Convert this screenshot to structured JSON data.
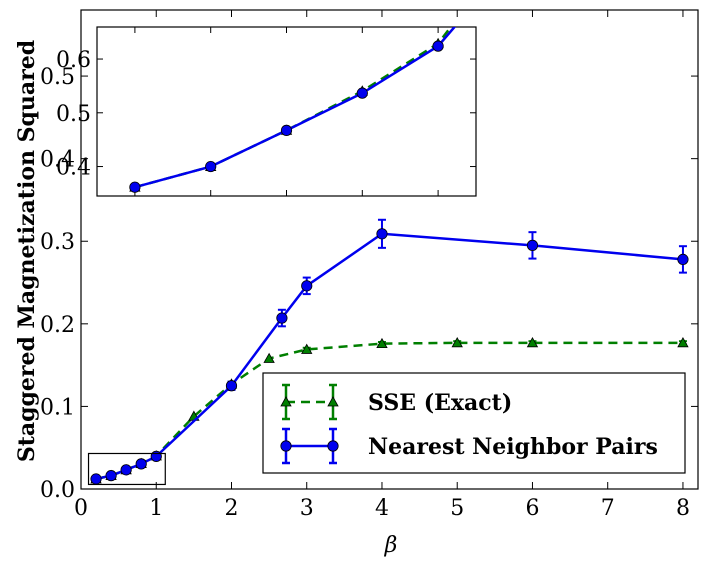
{
  "chart_data": [
    {
      "type": "line",
      "xlabel": "β",
      "ylabel": "Staggered Magnetization Squared",
      "xlim": [
        0,
        8.2
      ],
      "ylim": [
        0,
        0.58
      ],
      "x_ticks": [
        0,
        1,
        2,
        3,
        4,
        5,
        6,
        7,
        8
      ],
      "y_ticks": [
        0.0,
        0.1,
        0.2,
        0.3,
        0.4,
        0.5
      ],
      "x_tick_labels": [
        "0",
        "1",
        "2",
        "3",
        "4",
        "5",
        "6",
        "7",
        "8"
      ],
      "y_tick_labels": [
        "0.0",
        "0.1",
        "0.2",
        "0.3",
        "0.4",
        "0.5"
      ],
      "legend_position": "lower-right",
      "grid": false,
      "series": [
        {
          "name": "SSE (Exact)",
          "color": "#007f00",
          "linestyle": "dashed",
          "marker": "triangle",
          "x": [
            0.2,
            0.4,
            0.6,
            0.8,
            1.0,
            1.5,
            2.0,
            2.5,
            3.0,
            4.0,
            5.0,
            6.0,
            8.0
          ],
          "y": [
            0.0122,
            0.0162,
            0.0232,
            0.0308,
            0.04,
            0.088,
            0.127,
            0.158,
            0.169,
            0.176,
            0.177,
            0.177,
            0.177
          ],
          "yerr": [
            0,
            0,
            0,
            0,
            0,
            0,
            0,
            0,
            0.002,
            0.002,
            0.002,
            0.002,
            0.002
          ]
        },
        {
          "name": "Nearest Neighbor Pairs",
          "color": "#0000ee",
          "linestyle": "solid",
          "marker": "circle",
          "x": [
            0.2,
            0.4,
            0.6,
            0.8,
            1.0,
            2.0,
            2.67,
            3.0,
            4.0,
            6.0,
            8.0
          ],
          "y": [
            0.0122,
            0.0162,
            0.0232,
            0.0304,
            0.0395,
            0.125,
            0.207,
            0.246,
            0.309,
            0.295,
            0.278
          ],
          "yerr": [
            0.0004,
            0.0004,
            0.0004,
            0.0004,
            0.0005,
            0.005,
            0.01,
            0.01,
            0.017,
            0.016,
            0.016
          ]
        }
      ]
    },
    {
      "type": "line",
      "title": "",
      "xlim": [
        0.1,
        1.1
      ],
      "ylim": [
        0.0105,
        0.0432
      ],
      "y_ticks": [
        0.0162,
        0.0266,
        0.037
      ],
      "y_tick_labels": [
        "0.4",
        "0.5",
        "0.6"
      ],
      "series": [
        {
          "name": "SSE (Exact)",
          "color": "#007f00",
          "linestyle": "dashed",
          "marker": "triangle",
          "x": [
            0.2,
            0.4,
            0.6,
            0.8,
            1.0
          ],
          "y": [
            0.0122,
            0.0162,
            0.0232,
            0.0308,
            0.04
          ]
        },
        {
          "name": "Nearest Neighbor Pairs",
          "color": "#0000ee",
          "linestyle": "solid",
          "marker": "circle",
          "x": [
            0.2,
            0.4,
            0.6,
            0.8,
            1.0
          ],
          "y": [
            0.0122,
            0.0162,
            0.0232,
            0.0304,
            0.0395
          ]
        }
      ]
    }
  ]
}
